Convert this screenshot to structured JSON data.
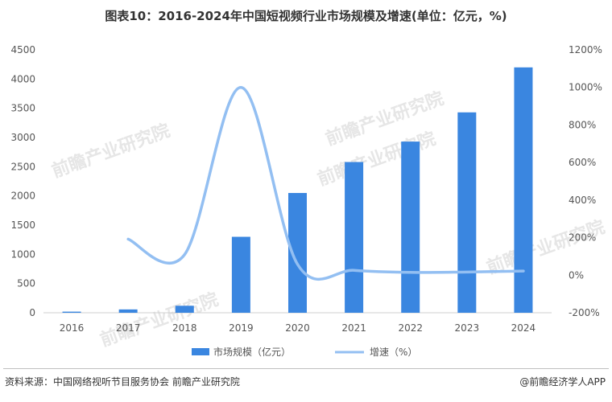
{
  "title": "图表10：2016-2024年中国短视频行业市场规模及增速(单位：亿元，%)",
  "source": "资料来源：中国网络视听节目服务协会 前瞻产业研究院",
  "brand": "@前瞻经济学人APP",
  "watermark": "前瞻产业研究院",
  "colors": {
    "bar": "#3a86e0",
    "line": "#93bff2",
    "axis": "#cfcfcf",
    "text": "#555555"
  },
  "chart_data": {
    "type": "bar",
    "categories": [
      "2016",
      "2017",
      "2018",
      "2019",
      "2020",
      "2021",
      "2022",
      "2023",
      "2024"
    ],
    "series": [
      {
        "name": "市场规模（亿元）",
        "type": "bar",
        "axis": "left",
        "values": [
          19,
          57,
          120,
          1300,
          2050,
          2580,
          2930,
          3430,
          4200
        ]
      },
      {
        "name": "增速（%）",
        "type": "line",
        "axis": "right",
        "values": [
          null,
          192,
          110,
          1000,
          58,
          26,
          15,
          17,
          22
        ]
      }
    ],
    "y_left": {
      "ylim": [
        0,
        4500
      ],
      "ticks": [
        "0",
        "500",
        "1000",
        "1500",
        "2000",
        "2500",
        "3000",
        "3500",
        "4000",
        "4500"
      ]
    },
    "y_right": {
      "ylim": [
        -200,
        1200
      ],
      "ticks": [
        "-200%",
        "0%",
        "200%",
        "400%",
        "600%",
        "800%",
        "1000%",
        "1200%"
      ]
    },
    "legend": "bottom"
  }
}
